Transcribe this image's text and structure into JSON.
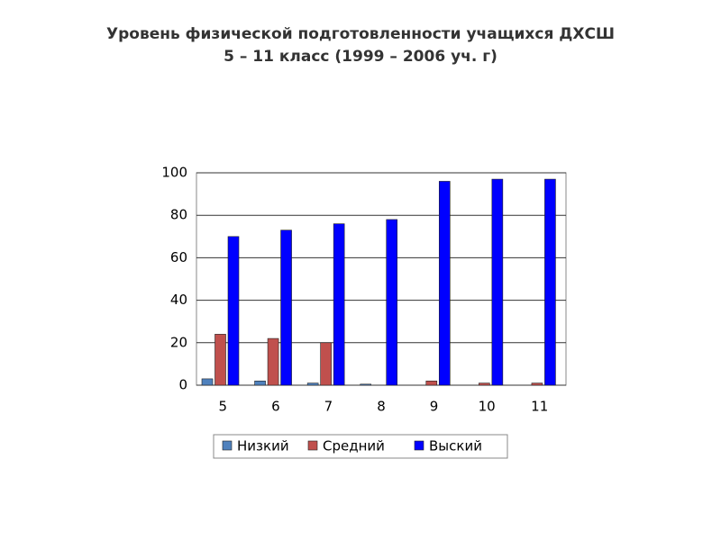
{
  "chart_data": {
    "type": "bar",
    "title": "Уровень физической подготовленности учащихся ДХСШ",
    "subtitle": "5 – 11 класс (1999 – 2006 уч. г)",
    "categories": [
      "5",
      "6",
      "7",
      "8",
      "9",
      "10",
      "11"
    ],
    "series": [
      {
        "name": "Низкий",
        "color": "#4f81bd",
        "values": [
          3,
          2,
          1,
          0.5,
          0,
          0,
          0
        ]
      },
      {
        "name": "Средний",
        "color": "#c0504d",
        "values": [
          24,
          22,
          20,
          0,
          2,
          1,
          1
        ]
      },
      {
        "name": "Выский",
        "color": "#0000ff",
        "values": [
          70,
          73,
          76,
          78,
          96,
          97,
          97
        ]
      }
    ],
    "ylim": [
      0,
      100
    ],
    "yticks": [
      0,
      20,
      40,
      60,
      80,
      100
    ],
    "grid": true
  }
}
